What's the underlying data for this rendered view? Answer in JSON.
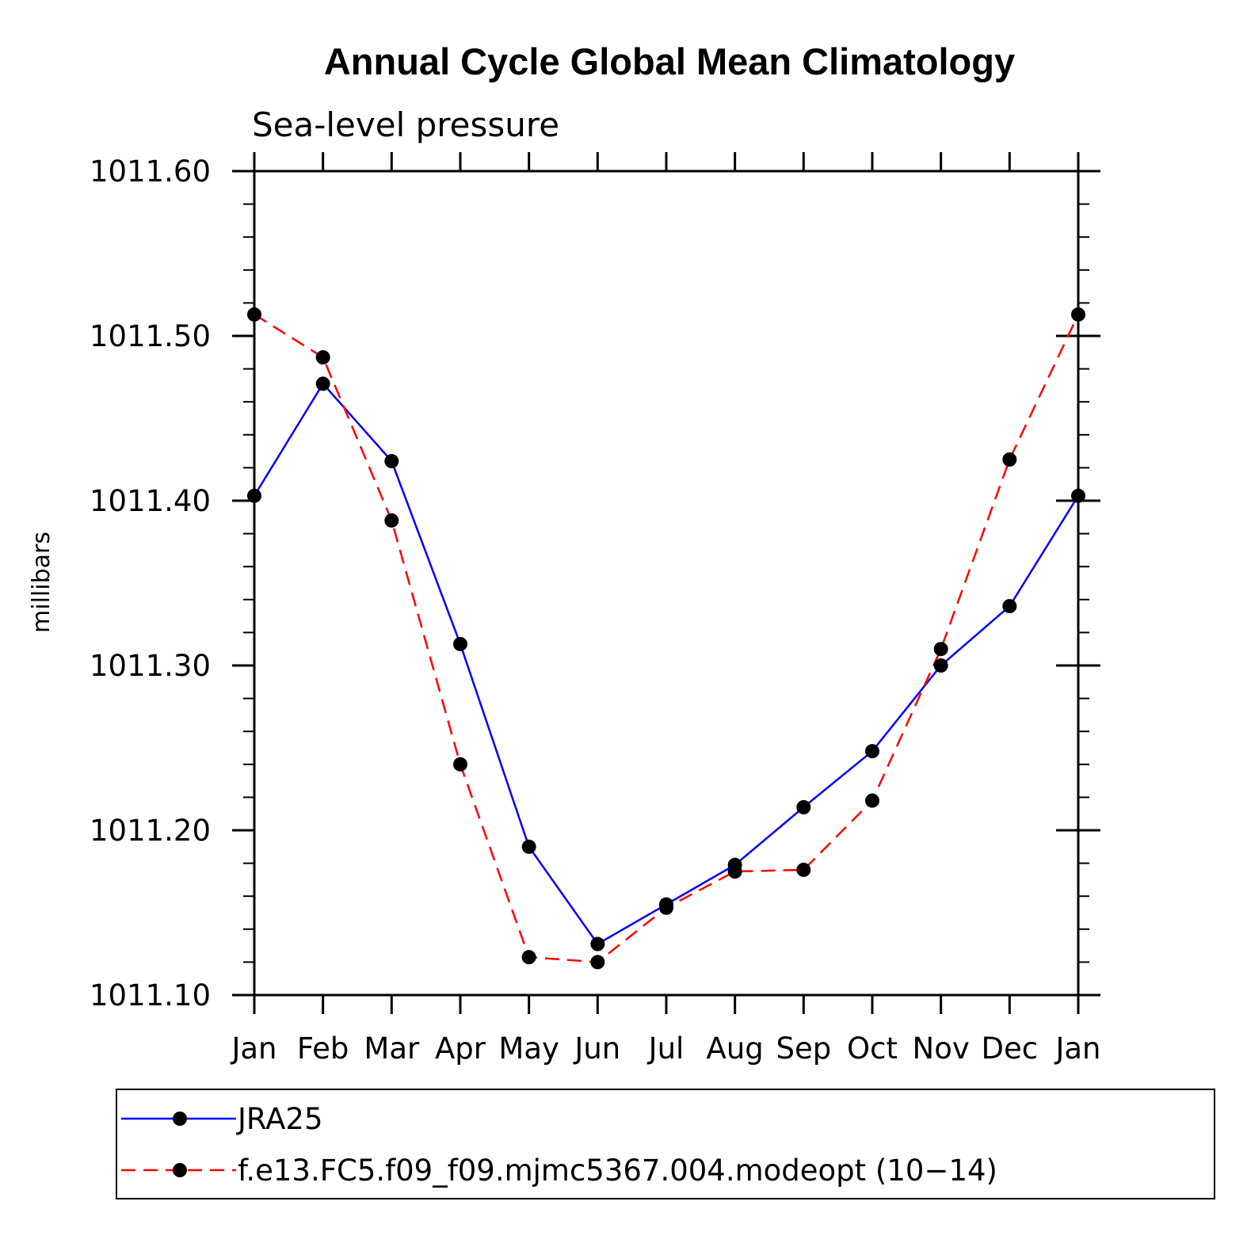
{
  "chart_data": {
    "type": "line",
    "title": "Annual Cycle Global Mean Climatology",
    "subtitle": "Sea-level pressure",
    "xlabel": "",
    "ylabel": "millibars",
    "categories": [
      "Jan",
      "Feb",
      "Mar",
      "Apr",
      "May",
      "Jun",
      "Jul",
      "Aug",
      "Sep",
      "Oct",
      "Nov",
      "Dec",
      "Jan"
    ],
    "ylim": [
      1011.1,
      1011.6
    ],
    "yticks": [
      "1011.10",
      "1011.20",
      "1011.30",
      "1011.40",
      "1011.50",
      "1011.60"
    ],
    "yticks_values": [
      1011.1,
      1011.2,
      1011.3,
      1011.4,
      1011.5,
      1011.6
    ],
    "series": [
      {
        "name": "JRA25",
        "color": "#0000ff",
        "dash": "solid",
        "values": [
          1011.403,
          1011.471,
          1011.424,
          1011.313,
          1011.19,
          1011.131,
          1011.155,
          1011.179,
          1011.214,
          1011.248,
          1011.3,
          1011.336,
          1011.403
        ]
      },
      {
        "name": "f.e13.FC5.f09_f09.mjmc5367.004.modeopt (10−14)",
        "color": "#ff0000",
        "dash": "dashed",
        "values": [
          1011.513,
          1011.487,
          1011.388,
          1011.24,
          1011.123,
          1011.12,
          1011.153,
          1011.175,
          1011.176,
          1011.218,
          1011.31,
          1011.425,
          1011.513
        ]
      }
    ],
    "legend_position": "bottom"
  }
}
